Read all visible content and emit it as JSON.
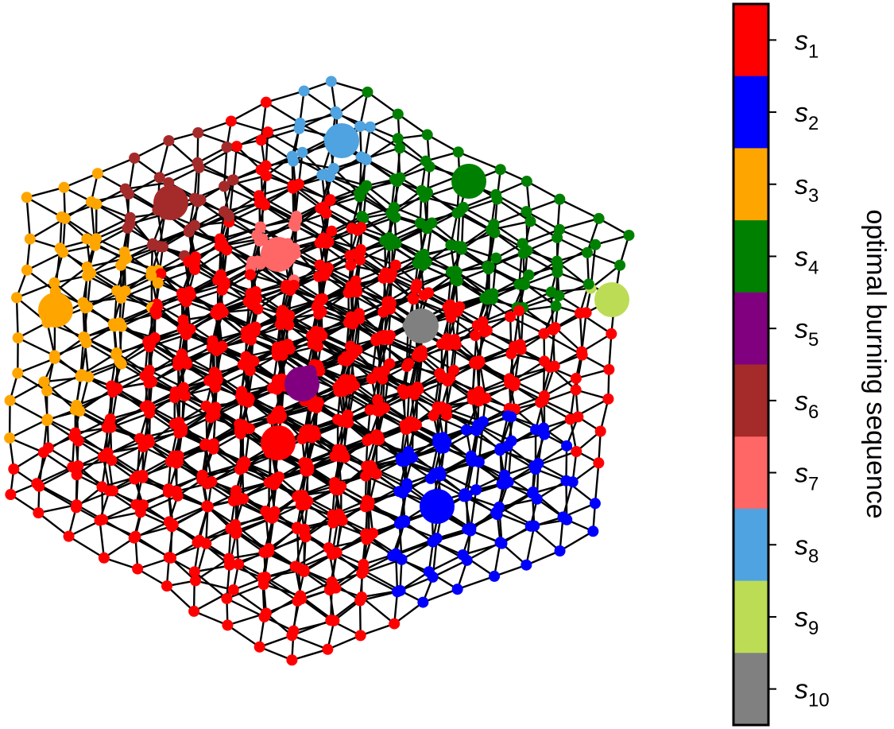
{
  "colorbar": {
    "label": "optimal burning sequence",
    "items": [
      {
        "symbol": "s",
        "index": "1",
        "color": "#ff0000"
      },
      {
        "symbol": "s",
        "index": "2",
        "color": "#0000ff"
      },
      {
        "symbol": "s",
        "index": "3",
        "color": "#ffa500"
      },
      {
        "symbol": "s",
        "index": "4",
        "color": "#008000"
      },
      {
        "symbol": "s",
        "index": "5",
        "color": "#800080"
      },
      {
        "symbol": "s",
        "index": "6",
        "color": "#a52a2a"
      },
      {
        "symbol": "s",
        "index": "7",
        "color": "#ff6666"
      },
      {
        "symbol": "s",
        "index": "8",
        "color": "#4fa3e0"
      },
      {
        "symbol": "s",
        "index": "9",
        "color": "#bddc55"
      },
      {
        "symbol": "s",
        "index": "10",
        "color": "#808080"
      }
    ]
  }
}
